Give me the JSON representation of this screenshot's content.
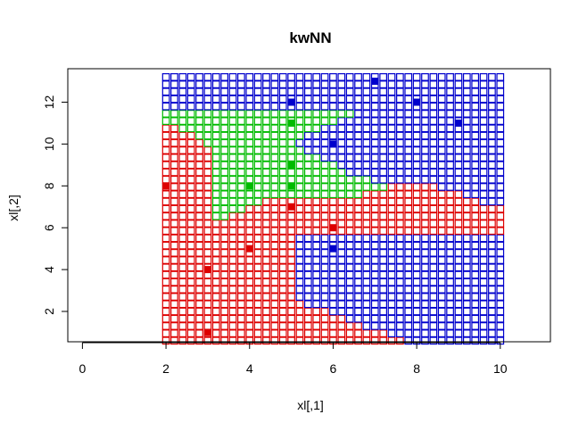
{
  "chart_data": {
    "type": "scatter",
    "title": "kwNN",
    "xlabel": "xl[,1]",
    "ylabel": "xl[,2]",
    "xlim": [
      -0.35,
      11.2
    ],
    "ylim": [
      0.55,
      13.6
    ],
    "xticks": [
      0,
      2,
      4,
      6,
      8,
      10
    ],
    "yticks": [
      2,
      4,
      6,
      8,
      10,
      12
    ],
    "grid": false,
    "legend": "none",
    "colors": {
      "red": "#dd0000",
      "green": "#00bb00",
      "blue": "#0000cc"
    },
    "grid_points": {
      "marker": "open-square",
      "x_start": 2.0,
      "x_end": 10.0,
      "x_step": 0.2,
      "y_start": 0.6,
      "y_end": 13.4,
      "y_step": 0.35,
      "class_rule": "nearest-training-point"
    },
    "training_points": [
      {
        "x": 3,
        "y": 1,
        "class": "red"
      },
      {
        "x": 3,
        "y": 4,
        "class": "red"
      },
      {
        "x": 4,
        "y": 5,
        "class": "red"
      },
      {
        "x": 6,
        "y": 5,
        "class": "blue"
      },
      {
        "x": 6,
        "y": 6,
        "class": "red"
      },
      {
        "x": 5,
        "y": 7,
        "class": "red"
      },
      {
        "x": 2,
        "y": 8,
        "class": "red"
      },
      {
        "x": 4,
        "y": 8,
        "class": "green"
      },
      {
        "x": 5,
        "y": 8,
        "class": "green"
      },
      {
        "x": 5,
        "y": 9,
        "class": "green"
      },
      {
        "x": 6,
        "y": 10,
        "class": "blue"
      },
      {
        "x": 5,
        "y": 11,
        "class": "green"
      },
      {
        "x": 9,
        "y": 11,
        "class": "blue"
      },
      {
        "x": 5,
        "y": 12,
        "class": "blue"
      },
      {
        "x": 8,
        "y": 12,
        "class": "blue"
      },
      {
        "x": 7,
        "y": 13,
        "class": "blue"
      }
    ]
  }
}
